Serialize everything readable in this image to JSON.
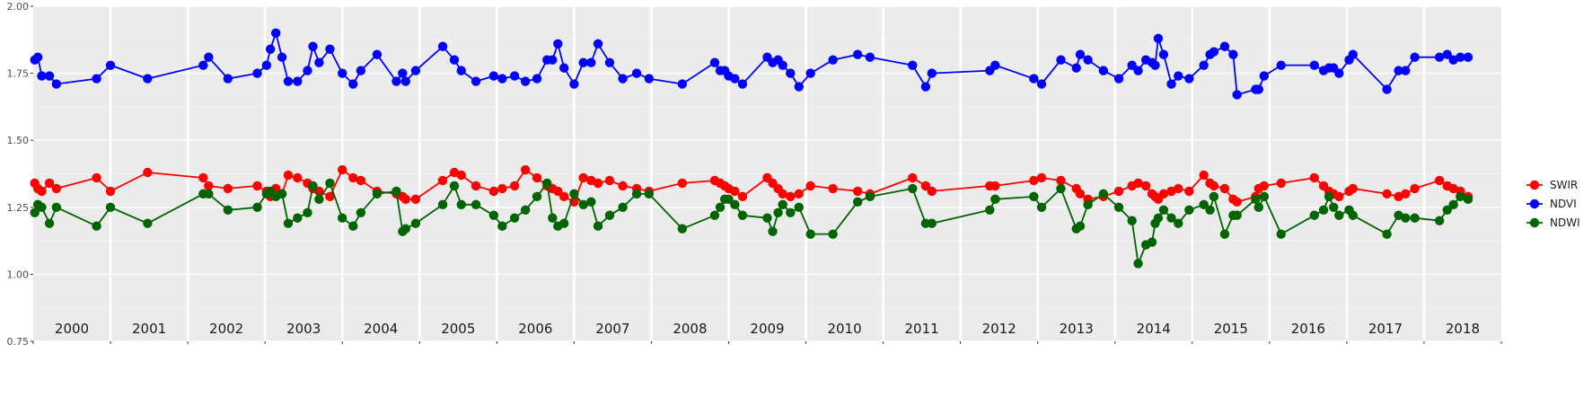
{
  "chart_data": {
    "type": "line",
    "title": "",
    "xlabel": "",
    "ylabel": "",
    "ylim": [
      0.75,
      2.0
    ],
    "xlim": [
      2000.0,
      2019.0
    ],
    "yticks": [
      "0.75",
      "1.00",
      "1.25",
      "1.50",
      "1.75",
      "2.00"
    ],
    "year_labels": [
      "2000",
      "2001",
      "2002",
      "2003",
      "2004",
      "2005",
      "2006",
      "2007",
      "2008",
      "2009",
      "2010",
      "2011",
      "2012",
      "2013",
      "2014",
      "2015",
      "2016",
      "2017",
      "2018"
    ],
    "grid": true,
    "legend_position": "right",
    "series": [
      {
        "name": "SWIR",
        "color": "#ff0000",
        "x": [
          2000.02,
          2000.06,
          2000.11,
          2000.21,
          2000.3,
          2000.82,
          2001.0,
          2001.48,
          2002.2,
          2002.27,
          2002.52,
          2002.9,
          2003.02,
          2003.07,
          2003.14,
          2003.22,
          2003.3,
          2003.42,
          2003.55,
          2003.62,
          2003.7,
          2003.84,
          2004.0,
          2004.14,
          2004.24,
          2004.45,
          2004.7,
          2004.78,
          2004.82,
          2004.95,
          2005.3,
          2005.45,
          2005.54,
          2005.73,
          2005.96,
          2006.07,
          2006.23,
          2006.37,
          2006.52,
          2006.65,
          2006.72,
          2006.79,
          2006.87,
          2007.0,
          2007.12,
          2007.22,
          2007.31,
          2007.46,
          2007.63,
          2007.81,
          2007.97,
          2008.4,
          2008.82,
          2008.89,
          2008.95,
          2009.0,
          2009.08,
          2009.18,
          2009.5,
          2009.57,
          2009.64,
          2009.7,
          2009.8,
          2009.91,
          2010.06,
          2010.35,
          2010.67,
          2010.83,
          2011.38,
          2011.55,
          2011.63,
          2012.38,
          2012.45,
          2012.95,
          2013.05,
          2013.3,
          2013.5,
          2013.55,
          2013.65,
          2013.85,
          2014.05,
          2014.22,
          2014.3,
          2014.4,
          2014.48,
          2014.52,
          2014.56,
          2014.63,
          2014.73,
          2014.82,
          2014.96,
          2015.15,
          2015.23,
          2015.28,
          2015.42,
          2015.53,
          2015.58,
          2015.82,
          2015.86,
          2015.93,
          2016.15,
          2016.58,
          2016.7,
          2016.77,
          2016.83,
          2016.9,
          2017.03,
          2017.08,
          2017.52,
          2017.67,
          2017.76,
          2017.88,
          2018.2,
          2018.3,
          2018.38,
          2018.47,
          2018.57
        ],
        "values": [
          1.34,
          1.32,
          1.31,
          1.34,
          1.32,
          1.36,
          1.31,
          1.38,
          1.36,
          1.33,
          1.32,
          1.33,
          1.31,
          1.29,
          1.32,
          1.3,
          1.37,
          1.36,
          1.34,
          1.32,
          1.31,
          1.29,
          1.39,
          1.36,
          1.35,
          1.31,
          1.3,
          1.29,
          1.28,
          1.28,
          1.35,
          1.38,
          1.37,
          1.33,
          1.31,
          1.32,
          1.33,
          1.39,
          1.36,
          1.33,
          1.32,
          1.31,
          1.29,
          1.27,
          1.36,
          1.35,
          1.34,
          1.35,
          1.33,
          1.32,
          1.31,
          1.34,
          1.35,
          1.34,
          1.33,
          1.32,
          1.31,
          1.29,
          1.36,
          1.34,
          1.32,
          1.3,
          1.29,
          1.3,
          1.33,
          1.32,
          1.31,
          1.3,
          1.36,
          1.33,
          1.31,
          1.33,
          1.33,
          1.35,
          1.36,
          1.35,
          1.32,
          1.3,
          1.28,
          1.29,
          1.31,
          1.33,
          1.34,
          1.33,
          1.3,
          1.29,
          1.28,
          1.3,
          1.31,
          1.32,
          1.31,
          1.37,
          1.34,
          1.33,
          1.32,
          1.28,
          1.27,
          1.29,
          1.32,
          1.33,
          1.34,
          1.36,
          1.33,
          1.31,
          1.3,
          1.29,
          1.31,
          1.32,
          1.3,
          1.29,
          1.3,
          1.32,
          1.35,
          1.33,
          1.32,
          1.31,
          1.29
        ]
      },
      {
        "name": "NDVI",
        "color": "#0000ff",
        "x": [
          2000.02,
          2000.06,
          2000.11,
          2000.21,
          2000.3,
          2000.82,
          2001.0,
          2001.48,
          2002.2,
          2002.27,
          2002.52,
          2002.9,
          2003.02,
          2003.07,
          2003.14,
          2003.22,
          2003.3,
          2003.42,
          2003.55,
          2003.62,
          2003.7,
          2003.84,
          2004.0,
          2004.14,
          2004.24,
          2004.45,
          2004.7,
          2004.78,
          2004.82,
          2004.95,
          2005.3,
          2005.45,
          2005.54,
          2005.73,
          2005.96,
          2006.07,
          2006.23,
          2006.37,
          2006.52,
          2006.65,
          2006.72,
          2006.79,
          2006.87,
          2007.0,
          2007.12,
          2007.22,
          2007.31,
          2007.46,
          2007.63,
          2007.81,
          2007.97,
          2008.4,
          2008.82,
          2008.89,
          2008.95,
          2009.0,
          2009.08,
          2009.18,
          2009.5,
          2009.57,
          2009.64,
          2009.7,
          2009.8,
          2009.91,
          2010.06,
          2010.35,
          2010.67,
          2010.83,
          2011.38,
          2011.55,
          2011.63,
          2012.38,
          2012.45,
          2012.95,
          2013.05,
          2013.3,
          2013.5,
          2013.55,
          2013.65,
          2013.85,
          2014.05,
          2014.22,
          2014.3,
          2014.4,
          2014.48,
          2014.52,
          2014.56,
          2014.63,
          2014.73,
          2014.82,
          2014.96,
          2015.15,
          2015.23,
          2015.28,
          2015.42,
          2015.53,
          2015.58,
          2015.82,
          2015.86,
          2015.93,
          2016.15,
          2016.58,
          2016.7,
          2016.77,
          2016.83,
          2016.9,
          2017.03,
          2017.08,
          2017.52,
          2017.67,
          2017.76,
          2017.88,
          2018.2,
          2018.3,
          2018.38,
          2018.47,
          2018.57
        ],
        "values": [
          1.8,
          1.81,
          1.74,
          1.74,
          1.71,
          1.73,
          1.78,
          1.73,
          1.78,
          1.81,
          1.73,
          1.75,
          1.78,
          1.84,
          1.9,
          1.81,
          1.72,
          1.72,
          1.76,
          1.85,
          1.79,
          1.84,
          1.75,
          1.71,
          1.76,
          1.82,
          1.72,
          1.75,
          1.72,
          1.76,
          1.85,
          1.8,
          1.76,
          1.72,
          1.74,
          1.73,
          1.74,
          1.72,
          1.73,
          1.8,
          1.8,
          1.86,
          1.77,
          1.71,
          1.79,
          1.79,
          1.86,
          1.79,
          1.73,
          1.75,
          1.73,
          1.71,
          1.79,
          1.76,
          1.76,
          1.74,
          1.73,
          1.71,
          1.81,
          1.79,
          1.8,
          1.78,
          1.75,
          1.7,
          1.75,
          1.8,
          1.82,
          1.81,
          1.78,
          1.7,
          1.75,
          1.76,
          1.78,
          1.73,
          1.71,
          1.8,
          1.77,
          1.82,
          1.8,
          1.76,
          1.73,
          1.78,
          1.76,
          1.8,
          1.79,
          1.78,
          1.88,
          1.82,
          1.71,
          1.74,
          1.73,
          1.78,
          1.82,
          1.83,
          1.85,
          1.82,
          1.67,
          1.69,
          1.69,
          1.74,
          1.78,
          1.78,
          1.76,
          1.77,
          1.77,
          1.75,
          1.8,
          1.82,
          1.69,
          1.76,
          1.76,
          1.81,
          1.81,
          1.82,
          1.8,
          1.81,
          1.81
        ]
      },
      {
        "name": "NDWI",
        "color": "#006400",
        "x": [
          2000.02,
          2000.06,
          2000.11,
          2000.21,
          2000.3,
          2000.82,
          2001.0,
          2001.48,
          2002.2,
          2002.27,
          2002.52,
          2002.9,
          2003.02,
          2003.07,
          2003.14,
          2003.22,
          2003.3,
          2003.42,
          2003.55,
          2003.62,
          2003.7,
          2003.84,
          2004.0,
          2004.14,
          2004.24,
          2004.45,
          2004.7,
          2004.78,
          2004.82,
          2004.95,
          2005.3,
          2005.45,
          2005.54,
          2005.73,
          2005.96,
          2006.07,
          2006.23,
          2006.37,
          2006.52,
          2006.65,
          2006.72,
          2006.79,
          2006.87,
          2007.0,
          2007.12,
          2007.22,
          2007.31,
          2007.46,
          2007.63,
          2007.81,
          2007.97,
          2008.4,
          2008.82,
          2008.89,
          2008.95,
          2009.0,
          2009.08,
          2009.18,
          2009.5,
          2009.57,
          2009.64,
          2009.7,
          2009.8,
          2009.91,
          2010.06,
          2010.35,
          2010.67,
          2010.83,
          2011.38,
          2011.55,
          2011.63,
          2012.38,
          2012.45,
          2012.95,
          2013.05,
          2013.3,
          2013.5,
          2013.55,
          2013.65,
          2013.85,
          2014.05,
          2014.22,
          2014.3,
          2014.4,
          2014.48,
          2014.52,
          2014.56,
          2014.63,
          2014.73,
          2014.82,
          2014.96,
          2015.15,
          2015.23,
          2015.28,
          2015.42,
          2015.53,
          2015.58,
          2015.82,
          2015.86,
          2015.93,
          2016.15,
          2016.58,
          2016.7,
          2016.77,
          2016.83,
          2016.9,
          2017.03,
          2017.08,
          2017.52,
          2017.67,
          2017.76,
          2017.88,
          2018.2,
          2018.3,
          2018.38,
          2018.47,
          2018.57
        ],
        "values": [
          1.23,
          1.26,
          1.25,
          1.19,
          1.25,
          1.18,
          1.25,
          1.19,
          1.3,
          1.3,
          1.24,
          1.25,
          1.3,
          1.31,
          1.29,
          1.3,
          1.19,
          1.21,
          1.23,
          1.33,
          1.28,
          1.34,
          1.21,
          1.18,
          1.23,
          1.3,
          1.31,
          1.16,
          1.17,
          1.19,
          1.26,
          1.33,
          1.26,
          1.26,
          1.22,
          1.18,
          1.21,
          1.24,
          1.29,
          1.34,
          1.21,
          1.18,
          1.19,
          1.3,
          1.26,
          1.27,
          1.18,
          1.22,
          1.25,
          1.3,
          1.3,
          1.17,
          1.22,
          1.25,
          1.28,
          1.28,
          1.26,
          1.22,
          1.21,
          1.16,
          1.23,
          1.26,
          1.23,
          1.25,
          1.15,
          1.15,
          1.27,
          1.29,
          1.32,
          1.19,
          1.19,
          1.24,
          1.28,
          1.29,
          1.25,
          1.32,
          1.17,
          1.18,
          1.26,
          1.3,
          1.25,
          1.2,
          1.04,
          1.11,
          1.12,
          1.19,
          1.21,
          1.24,
          1.21,
          1.19,
          1.24,
          1.26,
          1.24,
          1.29,
          1.15,
          1.22,
          1.22,
          1.28,
          1.25,
          1.29,
          1.15,
          1.22,
          1.24,
          1.29,
          1.25,
          1.22,
          1.24,
          1.22,
          1.15,
          1.22,
          1.21,
          1.21,
          1.2,
          1.24,
          1.26,
          1.29,
          1.28
        ]
      }
    ]
  }
}
